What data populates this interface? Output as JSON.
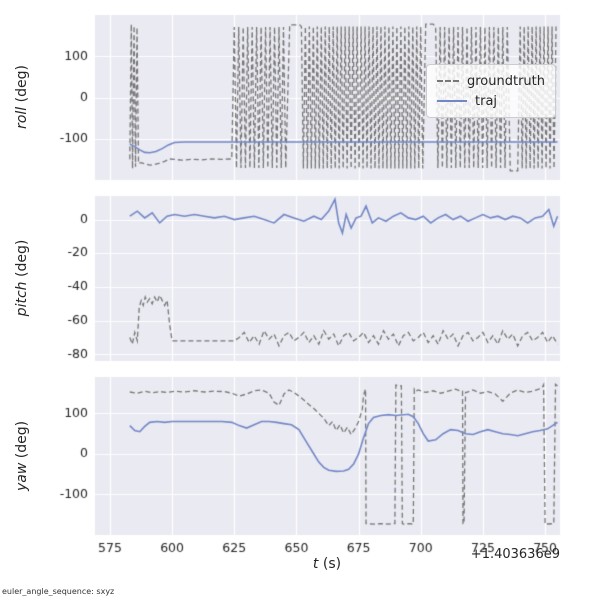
{
  "figure": {
    "bg": "#ffffff",
    "axes_bg": "#EAEAF2",
    "grid_color": "#ffffff",
    "text_color": "#262626",
    "corner_note": "euler_angle_sequence: sxyz",
    "x_offset_text": "+1.403636e9",
    "xlabel": {
      "var": "t",
      "unit": " (s)"
    },
    "x": {
      "lim": [
        569,
        756
      ],
      "ticks": [
        575,
        600,
        625,
        650,
        675,
        700,
        725,
        750
      ]
    },
    "legend": {
      "entries": [
        {
          "label": "groundtruth",
          "style": "dashed",
          "color": "#777777"
        },
        {
          "label": "traj",
          "style": "solid",
          "color": "#7287C6"
        }
      ]
    }
  },
  "chart_data": [
    {
      "type": "line",
      "ylabel": {
        "var": "roll",
        "unit": " (deg)"
      },
      "ylim": [
        -200,
        200
      ],
      "yticks": [
        100,
        0,
        -100
      ],
      "series": [
        {
          "name": "groundtruth",
          "color": "#777777",
          "dash": [
            5,
            3
          ],
          "width": 1.3,
          "segments": [
            {
              "points": {
                "x": [
                  583,
                  583.6,
                  584.1,
                  584.7,
                  585.3,
                  585.9,
                  586.5,
                  587.5,
                  589,
                  591,
                  593,
                  595,
                  597,
                  599,
                  601,
                  604,
                  608,
                  612,
                  616,
                  620,
                  624
                ],
                "y": [
                  -150,
                  178,
                  -172,
                  174,
                  -168,
                  170,
                  -160,
                  -158,
                  -161,
                  -164,
                  -162,
                  -159,
                  -155,
                  -149,
                  -150,
                  -152,
                  -150,
                  -151,
                  -149,
                  -150,
                  -149
                ]
              }
            },
            {
              "wrap": {
                "from": 625,
                "to": 646.5,
                "step": 0.9,
                "hi": 171,
                "lo": -171
              }
            },
            {
              "points": {
                "x": [
                  647.3,
                  651.3
                ],
                "y": [
                  176,
                  176
                ]
              }
            },
            {
              "wrap": {
                "from": 652,
                "to": 701,
                "step": 0.8,
                "hi": 172,
                "lo": -172
              }
            },
            {
              "points": {
                "x": [
                  702,
                  705
                ],
                "y": [
                  178,
                  178
                ]
              }
            },
            {
              "wrap": {
                "from": 706,
                "to": 735,
                "step": 0.9,
                "hi": 171,
                "lo": -171
              }
            },
            {
              "points": {
                "x": [
                  736,
                  739
                ],
                "y": [
                  -178,
                  -178
                ]
              }
            },
            {
              "wrap": {
                "from": 740,
                "to": 755,
                "step": 0.8,
                "hi": 172,
                "lo": -172
              }
            }
          ]
        },
        {
          "name": "traj",
          "color": "#7287C6",
          "dash": null,
          "width": 1.6,
          "segments": [
            {
              "points": {
                "x": [
                  583,
                  585,
                  587,
                  589,
                  591,
                  593.5,
                  596,
                  598.5,
                  601,
                  605,
                  755
                ],
                "y": [
                  -113,
                  -119,
                  -127,
                  -133,
                  -134,
                  -131,
                  -124,
                  -115,
                  -109,
                  -108,
                  -108
                ]
              }
            }
          ]
        }
      ]
    },
    {
      "type": "line",
      "ylabel": {
        "var": "pitch",
        "unit": " (deg)"
      },
      "ylim": [
        -84,
        14
      ],
      "yticks": [
        0,
        -20,
        -40,
        -60,
        -80
      ],
      "series": [
        {
          "name": "groundtruth",
          "color": "#777777",
          "dash": [
            5,
            3
          ],
          "width": 1.3,
          "segments": [
            {
              "points": {
                "x": [
                  583,
                  584,
                  585,
                  586,
                  586.8,
                  587.6,
                  588.4,
                  589.2,
                  590,
                  591,
                  592,
                  593,
                  594,
                  595,
                  596,
                  597,
                  598,
                  599,
                  600,
                  603,
                  607,
                  611,
                  615,
                  619,
                  623,
                  625
                ],
                "y": [
                  -70,
                  -74,
                  -67,
                  -72,
                  -52,
                  -48,
                  -51,
                  -46,
                  -49,
                  -47,
                  -50,
                  -46,
                  -49,
                  -45,
                  -48,
                  -51,
                  -48,
                  -62,
                  -72,
                  -72,
                  -72,
                  -72,
                  -72,
                  -72,
                  -72,
                  -72
                ]
              }
            },
            {
              "noisy": {
                "from": 627,
                "to": 755,
                "step": 2,
                "mean": -70,
                "pattern": [
                  0,
                  3,
                  -3,
                  1,
                  -4,
                  4,
                  -1,
                  2,
                  -5,
                  1,
                  3,
                  -2
                ]
              }
            }
          ]
        },
        {
          "name": "traj",
          "color": "#7287C6",
          "dash": null,
          "width": 1.6,
          "segments": [
            {
              "points": {
                "x": [
                  583,
                  586,
                  589,
                  592,
                  595,
                  598,
                  601,
                  605,
                  609,
                  613,
                  617,
                  621,
                  625,
                  629,
                  633,
                  637,
                  641,
                  645,
                  649,
                  653,
                  657,
                  660,
                  663,
                  665.5,
                  667,
                  668.5,
                  670,
                  672,
                  674,
                  676,
                  678,
                  680.5,
                  683,
                  686,
                  689,
                  692,
                  695,
                  698,
                  701,
                  704,
                  707,
                  710,
                  713,
                  716,
                  719,
                  722,
                  725,
                  728,
                  731,
                  734,
                  737,
                  740,
                  743,
                  746,
                  749,
                  751.5,
                  753.5,
                  755
                ],
                "y": [
                  2,
                  5,
                  1,
                  4,
                  -2,
                  2,
                  3,
                  2,
                  3,
                  2,
                  1,
                  2,
                  0,
                  1,
                  2,
                  0,
                  -2,
                  3,
                  1,
                  -1,
                  2,
                  0,
                  5,
                  12,
                  -2,
                  -8,
                  3,
                  -5,
                  1,
                  2,
                  8,
                  -2,
                  1,
                  -1,
                  2,
                  4,
                  1,
                  0,
                  2,
                  -2,
                  1,
                  3,
                  0,
                  2,
                  -1,
                  1,
                  3,
                  1,
                  2,
                  0,
                  2,
                  1,
                  -2,
                  1,
                  2,
                  6,
                  -4,
                  2
                ]
              }
            }
          ]
        }
      ]
    },
    {
      "type": "line",
      "ylabel": {
        "var": "yaw",
        "unit": " (deg)"
      },
      "ylim": [
        -200,
        190
      ],
      "yticks": [
        100,
        0,
        -100
      ],
      "series": [
        {
          "name": "groundtruth",
          "color": "#777777",
          "dash": [
            5,
            3
          ],
          "width": 1.3,
          "segments": [
            {
              "points": {
                "x": [
                  583,
                  586,
                  589,
                  592,
                  595,
                  598,
                  601,
                  605,
                  609,
                  613,
                  617,
                  621,
                  624,
                  627,
                  630,
                  633,
                  636,
                  639,
                  641,
                  643,
                  645,
                  647,
                  649,
                  651,
                  653,
                  655,
                  657,
                  659,
                  661,
                  663,
                  664.5,
                  666,
                  667.5,
                  669,
                  670.5,
                  672,
                  673.5,
                  675,
                  676.5
                ],
                "y": [
                  153,
                  150,
                  155,
                  151,
                  154,
                  152,
                  155,
                  153,
                  156,
                  153,
                  155,
                  154,
                  150,
                  143,
                  148,
                  156,
                  158,
                  150,
                  128,
                  120,
                  148,
                  158,
                  152,
                  143,
                  133,
                  122,
                  112,
                  100,
                  88,
                  70,
                  80,
                  58,
                  72,
                  52,
                  66,
                  48,
                  62,
                  80,
                  110
                ]
              }
            },
            {
              "points": {
                "x": [
                  677,
                  677.8,
                  678,
                  681,
                  684,
                  687,
                  689.6,
                  690,
                  692.2,
                  692.6,
                  693,
                  695,
                  697,
                  697.4,
                  698
                ],
                "y": [
                  145,
                  160,
                  -172,
                  -173,
                  -172,
                  -173,
                  -172,
                  170,
                  168,
                  -172,
                  -173,
                  -172,
                  -173,
                  160,
                  155
                ]
              }
            },
            {
              "points": {
                "x": [
                  699,
                  702,
                  705,
                  708,
                  711,
                  714,
                  716
                ],
                "y": [
                  158,
                  152,
                  156,
                  150,
                  155,
                  160,
                  155
                ]
              }
            },
            {
              "points": {
                "x": [
                  716.8,
                  717,
                  717.4,
                  718
                ],
                "y": [
                  155,
                  -172,
                  -172,
                  152
                ]
              }
            },
            {
              "points": {
                "x": [
                  718.5,
                  721,
                  724,
                  727,
                  730,
                  733,
                  736,
                  739,
                  742,
                  745,
                  747.5,
                  749
                ],
                "y": [
                  152,
                  158,
                  150,
                  154,
                  148,
                  130,
                  150,
                  158,
                  152,
                  155,
                  160,
                  166
                ]
              }
            },
            {
              "points": {
                "x": [
                  749.4,
                  750,
                  753.5,
                  754.2,
                  755
                ],
                "y": [
                  171,
                  -173,
                  -172,
                  172,
                  168
                ]
              }
            }
          ]
        },
        {
          "name": "traj",
          "color": "#7287C6",
          "dash": null,
          "width": 1.6,
          "segments": [
            {
              "points": {
                "x": [
                  583,
                  585,
                  587,
                  589,
                  591,
                  594,
                  597,
                  600,
                  604,
                  608,
                  612,
                  616,
                  620,
                  624,
                  627,
                  630,
                  633,
                  636,
                  639,
                  642,
                  645,
                  648,
                  651,
                  654,
                  657,
                  659,
                  661,
                  663,
                  666,
                  669,
                  671,
                  673,
                  675,
                  677,
                  679,
                  681,
                  684,
                  687,
                  690,
                  693,
                  695,
                  697,
                  699,
                  701,
                  703,
                  706,
                  709,
                  712,
                  715,
                  718,
                  721,
                  724,
                  727,
                  730,
                  733,
                  736,
                  739,
                  742,
                  745,
                  748,
                  751,
                  753,
                  755
                ],
                "y": [
                  70,
                  58,
                  55,
                  68,
                  78,
                  80,
                  78,
                  80,
                  80,
                  80,
                  80,
                  80,
                  80,
                  78,
                  70,
                  64,
                  72,
                  80,
                  80,
                  78,
                  75,
                  72,
                  60,
                  30,
                  0,
                  -20,
                  -33,
                  -40,
                  -43,
                  -42,
                  -38,
                  -25,
                  0,
                  40,
                  75,
                  90,
                  95,
                  97,
                  95,
                  97,
                  98,
                  92,
                  75,
                  50,
                  32,
                  35,
                  50,
                  60,
                  58,
                  50,
                  48,
                  55,
                  60,
                  55,
                  50,
                  48,
                  45,
                  50,
                  55,
                  58,
                  62,
                  70,
                  78
                ]
              }
            }
          ]
        }
      ]
    }
  ]
}
